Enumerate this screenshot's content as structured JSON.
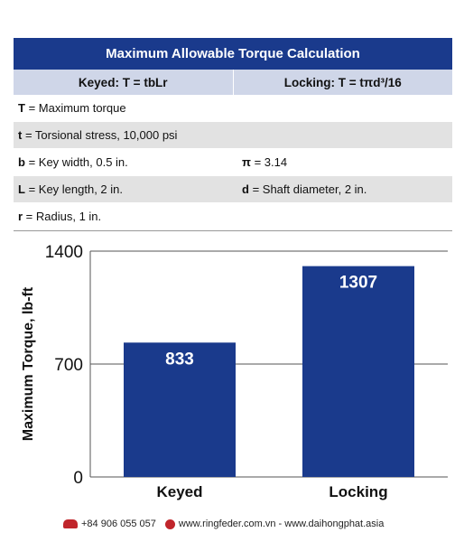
{
  "table": {
    "title": "Maximum Allowable Torque Calculation",
    "keyed_formula": "Keyed: T = tbLr",
    "locking_formula": "Locking: T = tπd³/16",
    "rows": [
      {
        "sym1": "T",
        "text1": " = Maximum torque",
        "sym2": "",
        "text2": ""
      },
      {
        "sym1": "t",
        "text1": " = Torsional stress, 10,000 psi",
        "sym2": "",
        "text2": ""
      },
      {
        "sym1": "b",
        "text1": " = Key width, 0.5 in.",
        "sym2": "π",
        "text2": " = 3.14"
      },
      {
        "sym1": "L",
        "text1": " = Key length, 2 in.",
        "sym2": "d",
        "text2": " = Shaft diameter, 2 in."
      },
      {
        "sym1": "r",
        "text1": " = Radius, 1 in.",
        "sym2": "",
        "text2": ""
      }
    ]
  },
  "chart_data": {
    "type": "bar",
    "categories": [
      "Keyed",
      "Locking"
    ],
    "values": [
      833,
      1307
    ],
    "ylabel": "Maximum Torque, lb-ft",
    "ylim": [
      0,
      1400
    ],
    "yticks": [
      0,
      700,
      1400
    ],
    "bar_color": "#1a3a8c",
    "grid": true
  },
  "footer": {
    "phone": "+84 906 055 057",
    "web": "www.ringfeder.com.vn - www.daihongphat.asia"
  }
}
